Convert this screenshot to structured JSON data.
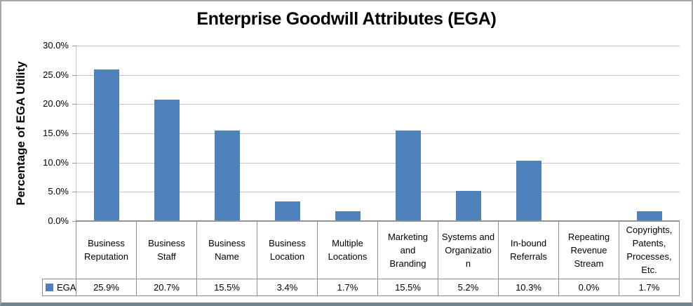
{
  "chart_data": {
    "type": "bar",
    "title": "Enterprise Goodwill Attributes (EGA)",
    "ylabel": "Percentage of EGA Utility",
    "xlabel": "",
    "ylim": [
      0,
      30
    ],
    "ytick_step": 5,
    "ytick_labels": [
      "30.0%",
      "25.0%",
      "20.0%",
      "15.0%",
      "10.0%",
      "5.0%",
      "0.0%"
    ],
    "grid": true,
    "legend_position": "bottom-left",
    "categories": [
      "Business Reputation",
      "Business Staff",
      "Business Name",
      "Business Location",
      "Multiple Locations",
      "Marketing and Branding",
      "Systems and Organization",
      "In-bound Referrals",
      "Repeating Revenue Stream",
      "Copyrights, Patents, Processes, Etc."
    ],
    "categories_display": [
      "Business\nReputation",
      "Business\nStaff",
      "Business\nName",
      "Business\nLocation",
      "Multiple\nLocations",
      "Marketing\nand\nBranding",
      "Systems and\nOrganizatio\nn",
      "In-bound\nReferrals",
      "Repeating\nRevenue\nStream",
      "Copyrights,\nPatents,\nProcesses,\nEtc."
    ],
    "series": [
      {
        "name": "EGA",
        "color": "#4F81BD",
        "values": [
          25.9,
          20.7,
          15.5,
          3.4,
          1.7,
          15.5,
          5.2,
          10.3,
          0.0,
          1.7
        ],
        "value_labels": [
          "25.9%",
          "20.7%",
          "15.5%",
          "3.4%",
          "1.7%",
          "15.5%",
          "5.2%",
          "10.3%",
          "0.0%",
          "1.7%"
        ]
      }
    ]
  },
  "colors": {
    "bar": "#4F81BD",
    "gridline": "#C6C6C6",
    "axis_line": "#9A9A9A",
    "table_border": "#8E8E8E",
    "frame_border": "#A6A6A6",
    "frame_border_bottom": "#75858F",
    "background": "#FFFFFF",
    "text": "#000000"
  }
}
